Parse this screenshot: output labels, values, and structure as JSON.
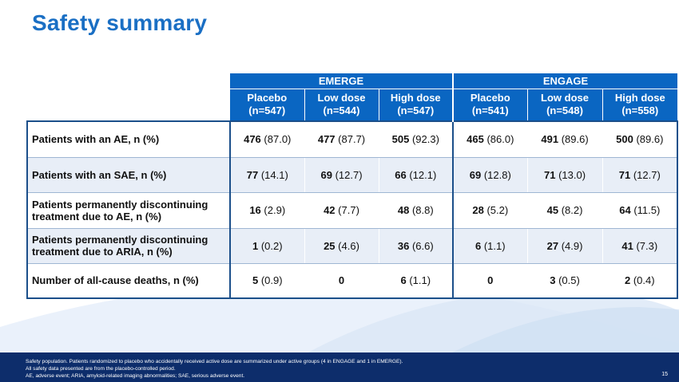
{
  "title": "Safety summary",
  "groups": [
    "EMERGE",
    "ENGAGE"
  ],
  "columns": [
    {
      "name": "Placebo",
      "n": "(n=547)"
    },
    {
      "name": "Low dose",
      "n": "(n=544)"
    },
    {
      "name": "High dose",
      "n": "(n=547)"
    },
    {
      "name": "Placebo",
      "n": "(n=541)"
    },
    {
      "name": "Low dose",
      "n": "(n=548)"
    },
    {
      "name": "High dose",
      "n": "(n=558)"
    }
  ],
  "rows": [
    {
      "label": "Patients with an AE, n (%)",
      "cells": [
        [
          "476",
          "(87.0)"
        ],
        [
          "477",
          "(87.7)"
        ],
        [
          "505",
          "(92.3)"
        ],
        [
          "465",
          "(86.0)"
        ],
        [
          "491",
          "(89.6)"
        ],
        [
          "500",
          "(89.6)"
        ]
      ]
    },
    {
      "label": "Patients with an SAE, n (%)",
      "cells": [
        [
          "77",
          "(14.1)"
        ],
        [
          "69",
          "(12.7)"
        ],
        [
          "66",
          "(12.1)"
        ],
        [
          "69",
          "(12.8)"
        ],
        [
          "71",
          "(13.0)"
        ],
        [
          "71",
          "(12.7)"
        ]
      ]
    },
    {
      "label": "Patients permanently discontinuing treatment due to AE, n (%)",
      "cells": [
        [
          "16",
          "(2.9)"
        ],
        [
          "42",
          "(7.7)"
        ],
        [
          "48",
          "(8.8)"
        ],
        [
          "28",
          "(5.2)"
        ],
        [
          "45",
          "(8.2)"
        ],
        [
          "64",
          "(11.5)"
        ]
      ]
    },
    {
      "label": "Patients permanently discontinuing treatment due to ARIA, n (%)",
      "cells": [
        [
          "1",
          "(0.2)"
        ],
        [
          "25",
          "(4.6)"
        ],
        [
          "36",
          "(6.6)"
        ],
        [
          "6",
          "(1.1)"
        ],
        [
          "27",
          "(4.9)"
        ],
        [
          "41",
          "(7.3)"
        ]
      ]
    },
    {
      "label": "Number of all-cause deaths, n (%)",
      "cells": [
        [
          "5",
          "(0.9)"
        ],
        [
          "0",
          ""
        ],
        [
          "6",
          "(1.1)"
        ],
        [
          "0",
          ""
        ],
        [
          "3",
          "(0.5)"
        ],
        [
          "2",
          "(0.4)"
        ]
      ]
    }
  ],
  "footnotes": [
    "Safety population. Patients randomized to placebo who accidentally received active dose are summarized under active groups (4 in ENGAGE and 1 in EMERGE).",
    "All safety data presented are from the placebo-controlled period.",
    "AE, adverse event; ARIA, amyloid-related imaging abnormalities; SAE, serious adverse event."
  ],
  "page_number": "15",
  "colors": {
    "title": "#1a6fc4",
    "header": "#0a66c2",
    "footer": "#0d2d6b",
    "row_alt": "#e8eef7"
  }
}
